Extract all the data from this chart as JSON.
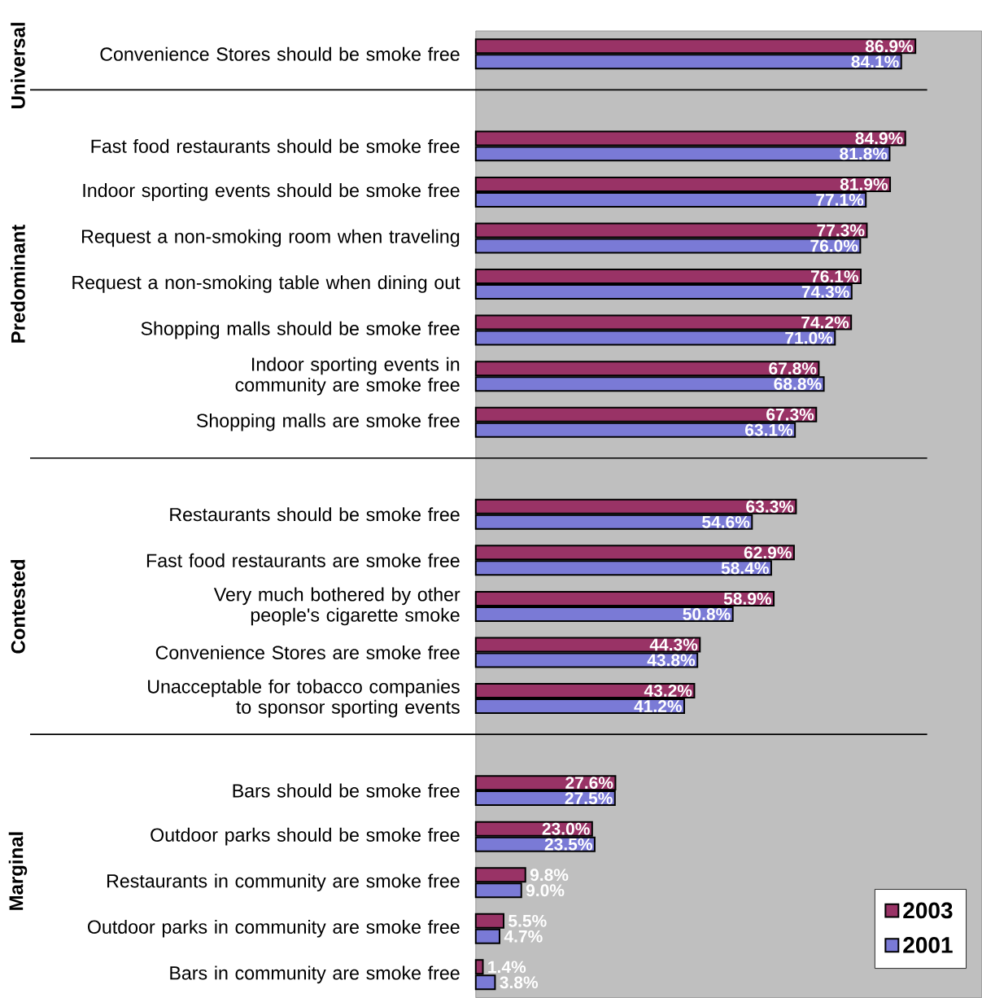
{
  "chart_data": {
    "type": "bar",
    "orientation": "horizontal",
    "categories": [
      "Convenience Stores should be smoke free",
      null,
      "Fast food restaurants should be smoke free",
      "Indoor sporting events should be smoke free",
      "Request a non-smoking room when traveling",
      "Request a non-smoking table when dining out",
      "Shopping malls should be smoke free",
      "Indoor sporting events in community are smoke free",
      "Shopping malls are smoke free",
      null,
      "Restaurants should be smoke free",
      "Fast food restaurants are smoke free",
      "Very much bothered by other people's cigarette smoke",
      "Convenience Stores are smoke free",
      "Unacceptable for tobacco companies to sponsor sporting events",
      null,
      "Bars should be smoke free",
      "Outdoor parks should be smoke free",
      "Restaurants in community are smoke free",
      "Outdoor parks in community are smoke free",
      "Bars in community are smoke free"
    ],
    "series": [
      {
        "name": "2003",
        "color": "#993366",
        "values": [
          86.9,
          null,
          84.9,
          81.9,
          77.3,
          76.1,
          74.2,
          67.8,
          67.3,
          null,
          63.3,
          62.9,
          58.9,
          44.3,
          43.2,
          null,
          27.6,
          23.0,
          9.8,
          5.5,
          1.4
        ],
        "value_labels": [
          "86.9%",
          null,
          "84.9%",
          "81.9%",
          "77.3%",
          "76.1%",
          "74.2%",
          "67.8%",
          "67.3%",
          null,
          "63.3%",
          "62.9%",
          "58.9%",
          "44.3%",
          "43.2%",
          null,
          "27.6%",
          "23.0%",
          "9.8%",
          "5.5%",
          "1.4%"
        ]
      },
      {
        "name": "2001",
        "color": "#7a7ad6",
        "values": [
          84.1,
          null,
          81.8,
          77.1,
          76.0,
          74.3,
          71.0,
          68.8,
          63.1,
          null,
          54.6,
          58.4,
          50.8,
          43.8,
          41.2,
          null,
          27.5,
          23.5,
          9.0,
          4.7,
          3.8
        ],
        "value_labels": [
          "84.1%",
          null,
          "81.8%",
          "77.1%",
          "76.0%",
          "74.3%",
          "71.0%",
          "68.8%",
          "63.1%",
          null,
          "54.6%",
          "58.4%",
          "50.8%",
          "43.8%",
          "41.2%",
          null,
          "27.5%",
          "23.5%",
          "9.0%",
          "4.7%",
          "3.8%"
        ]
      }
    ],
    "xlim": [
      0,
      100
    ],
    "tick_labels": "y",
    "legend": "bottom right",
    "annotations": [
      "Universal",
      "Predominant",
      "Contested",
      "Marginal"
    ]
  }
}
